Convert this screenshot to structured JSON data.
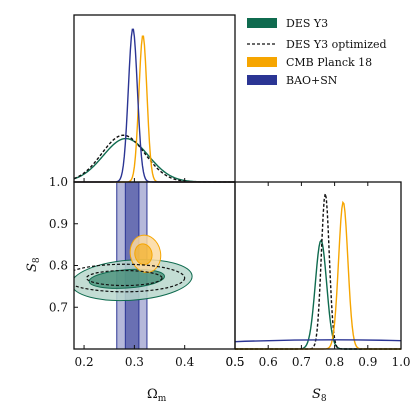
{
  "chart_data": {
    "type": "corner_plot",
    "legend": [
      {
        "label": "DES Y3",
        "color": "#0f6b4f",
        "style": "filled"
      },
      {
        "label": "DES Y3 optimized",
        "color": "#111111",
        "style": "dashed"
      },
      {
        "label": "CMB Planck 18",
        "color": "#f6a500",
        "style": "filled"
      },
      {
        "label": "BAO+SN",
        "color": "#2b3594",
        "style": "filled"
      }
    ],
    "colors": {
      "des": "#0f6b4f",
      "des_light": "#b9d7cd",
      "cmb": "#f6a500",
      "cmb_light": "#fbd9a0",
      "bao": "#2b3594",
      "bao_light": "#a4a9d9",
      "dashed": "#111111"
    },
    "parameters": {
      "omega_m": {
        "label": "Ω",
        "sub": "m",
        "range": [
          0.18,
          0.5
        ],
        "ticks": [
          "0.2",
          "0.3",
          "0.4",
          "0.5"
        ]
      },
      "s8": {
        "label": "S",
        "sub": "8",
        "range": [
          0.6,
          1.0
        ],
        "ticks_y": [
          "0.7",
          "0.8",
          "0.9",
          "1.0"
        ],
        "ticks_x": [
          "0.5",
          "0.6",
          "0.7",
          "0.8",
          "0.9",
          "1.0"
        ],
        "range_x": [
          0.5,
          1.0
        ]
      }
    },
    "marginal_omega_m": [
      {
        "series": "DES Y3",
        "type": "gaussian",
        "mean": 0.283,
        "sigma": 0.045,
        "peak": 0.26
      },
      {
        "series": "DES Y3 optimized",
        "type": "gaussian",
        "mean": 0.278,
        "sigma": 0.043,
        "peak": 0.28
      },
      {
        "series": "CMB Planck 18",
        "type": "gaussian",
        "mean": 0.317,
        "sigma": 0.008,
        "peak": 0.88
      },
      {
        "series": "BAO+SN",
        "type": "gaussian",
        "mean": 0.297,
        "sigma": 0.009,
        "peak": 0.92
      }
    ],
    "marginal_s8": [
      {
        "series": "DES Y3",
        "type": "gaussian",
        "mean": 0.759,
        "sigma": 0.017,
        "peak": 0.65
      },
      {
        "series": "DES Y3 optimized",
        "type": "gaussian",
        "mean": 0.772,
        "sigma": 0.012,
        "peak": 0.93
      },
      {
        "series": "CMB Planck 18",
        "type": "gaussian",
        "mean": 0.826,
        "sigma": 0.014,
        "peak": 0.88
      },
      {
        "series": "BAO+SN",
        "type": "flat",
        "level": 0.05
      }
    ],
    "contours_2d": [
      {
        "series": "BAO+SN",
        "level": "2sigma",
        "omega_range": [
          0.265,
          0.325
        ],
        "s8_range": [
          0.6,
          1.0
        ]
      },
      {
        "series": "BAO+SN",
        "level": "1sigma",
        "omega_range": [
          0.282,
          0.309
        ],
        "s8_range": [
          0.6,
          1.0
        ]
      },
      {
        "series": "DES Y3",
        "level": "2sigma",
        "center": [
          0.295,
          0.765
        ],
        "omega_half_width": 0.12,
        "s8_half_height": 0.048
      },
      {
        "series": "DES Y3",
        "level": "1sigma",
        "center": [
          0.285,
          0.768
        ],
        "omega_half_width": 0.075,
        "s8_half_height": 0.022
      },
      {
        "series": "DES Y3 optimized",
        "level": "2sigma",
        "center": [
          0.28,
          0.77
        ],
        "omega_half_width": 0.12,
        "s8_half_height": 0.033
      },
      {
        "series": "DES Y3 optimized",
        "level": "1sigma",
        "center": [
          0.28,
          0.77
        ],
        "omega_half_width": 0.075,
        "s8_half_height": 0.018
      },
      {
        "series": "CMB Planck 18",
        "level": "2sigma",
        "center": [
          0.322,
          0.828
        ],
        "omega_half_width": 0.03,
        "s8_half_height": 0.045
      },
      {
        "series": "CMB Planck 18",
        "level": "1sigma",
        "center": [
          0.318,
          0.827
        ],
        "omega_half_width": 0.017,
        "s8_half_height": 0.025
      }
    ]
  }
}
